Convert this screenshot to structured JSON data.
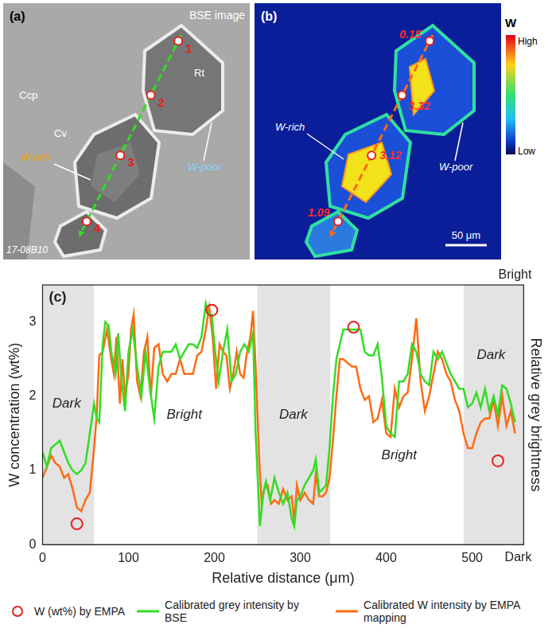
{
  "panel_a": {
    "letter": "(a)",
    "caption": "BSE image",
    "sample": "17-08B10",
    "minerals": [
      "Rt",
      "Ccp",
      "Cv"
    ],
    "zones": [
      "W-rich",
      "W-poor"
    ],
    "spots": [
      1,
      2,
      3,
      4
    ]
  },
  "panel_b": {
    "letter": "(b)",
    "element": "W",
    "colorbar_high": "High",
    "colorbar_low": "Low",
    "zones": [
      "W-rich",
      "W-poor"
    ],
    "spot_values": [
      0.15,
      3.32,
      3.12,
      1.09
    ],
    "scale_bar": "50 μm"
  },
  "chart_data": {
    "type": "line",
    "letter": "(c)",
    "xlabel": "Relative distance (μm)",
    "ylabel": "W concentration (wt%)",
    "y2label": "Relative grey brightness",
    "y2_top_label": "Bright",
    "y2_bottom_label": "Dark",
    "xlim": [
      0,
      560
    ],
    "xticks": [
      0,
      100,
      200,
      300,
      400,
      500
    ],
    "ylim": [
      0,
      3.5
    ],
    "yticks": [
      0,
      1,
      2,
      3
    ],
    "grid": false,
    "legend": "bottom",
    "bands": [
      {
        "from": 0,
        "to": 60
      },
      {
        "from": 250,
        "to": 335
      },
      {
        "from": 490,
        "to": 560
      }
    ],
    "annotations": [
      {
        "text": "Dark",
        "x": 28,
        "y": 1.9
      },
      {
        "text": "Bright",
        "x": 165,
        "y": 1.75
      },
      {
        "text": "Dark",
        "x": 292,
        "y": 1.75
      },
      {
        "text": "Bright",
        "x": 415,
        "y": 1.2
      },
      {
        "text": "Dark",
        "x": 522,
        "y": 2.55
      }
    ],
    "series": [
      {
        "name": "W (wt%) by EMPA",
        "type": "scatter",
        "marker": "circle",
        "color": "#e8201b",
        "x": [
          40,
          197,
          362,
          530
        ],
        "values": [
          0.28,
          3.16,
          2.93,
          1.13
        ]
      },
      {
        "name": "Calibrated grey intensity by BSE",
        "type": "line",
        "line_style": "solid",
        "color": "#33dd22",
        "x": [
          0,
          5,
          10,
          15,
          20,
          25,
          30,
          35,
          40,
          45,
          50,
          55,
          60,
          63,
          66,
          70,
          73,
          77,
          80,
          85,
          88,
          92,
          96,
          100,
          105,
          110,
          115,
          120,
          125,
          130,
          135,
          140,
          145,
          150,
          155,
          160,
          165,
          170,
          175,
          180,
          185,
          190,
          193,
          197,
          200,
          205,
          210,
          215,
          220,
          225,
          230,
          235,
          240,
          245,
          248,
          250,
          253,
          257,
          260,
          265,
          270,
          275,
          280,
          285,
          290,
          293,
          296,
          300,
          305,
          310,
          315,
          318,
          322,
          326,
          330,
          334,
          338,
          342,
          346,
          350,
          355,
          360,
          365,
          370,
          375,
          380,
          385,
          390,
          395,
          400,
          405,
          410,
          415,
          420,
          425,
          430,
          435,
          440,
          445,
          450,
          455,
          460,
          465,
          470,
          475,
          480,
          485,
          490,
          495,
          500,
          505,
          510,
          515,
          520,
          525,
          530,
          535,
          540,
          545,
          550
        ],
        "values": [
          1.25,
          1.05,
          1.3,
          1.35,
          1.4,
          1.25,
          1.1,
          1.0,
          0.95,
          1.0,
          1.1,
          1.5,
          1.9,
          1.7,
          1.65,
          2.7,
          3.0,
          2.95,
          2.6,
          2.3,
          2.85,
          2.2,
          1.8,
          2.6,
          2.9,
          2.4,
          2.0,
          2.6,
          2.1,
          1.7,
          2.4,
          2.6,
          2.6,
          2.6,
          2.7,
          2.5,
          2.6,
          2.7,
          2.7,
          2.65,
          2.8,
          3.25,
          3.1,
          3.1,
          2.7,
          2.2,
          2.6,
          2.9,
          2.2,
          2.3,
          2.6,
          2.7,
          2.6,
          2.85,
          1.5,
          1.0,
          0.25,
          0.7,
          0.85,
          0.6,
          0.9,
          0.7,
          0.55,
          0.7,
          0.35,
          0.25,
          0.6,
          0.65,
          0.8,
          0.9,
          1.0,
          1.15,
          0.7,
          0.75,
          0.8,
          1.3,
          2.0,
          2.5,
          2.7,
          2.9,
          2.9,
          2.9,
          2.9,
          2.9,
          2.6,
          2.55,
          2.55,
          2.7,
          2.25,
          1.6,
          1.5,
          1.45,
          2.2,
          2.2,
          2.3,
          2.7,
          2.6,
          2.3,
          2.2,
          2.15,
          2.6,
          2.5,
          2.6,
          2.45,
          2.3,
          2.2,
          2.1,
          2.1,
          1.85,
          1.9,
          2.05,
          1.85,
          2.1,
          1.8,
          2.0,
          1.75,
          2.15,
          2.1,
          1.9,
          1.65
        ]
      },
      {
        "name": "Calibrated W intensity by EMPA mapping",
        "type": "line",
        "line_style": "solid",
        "color": "#ff6a13",
        "x": [
          0,
          5,
          10,
          15,
          20,
          25,
          30,
          35,
          40,
          45,
          50,
          55,
          60,
          63,
          66,
          70,
          75,
          80,
          83,
          86,
          90,
          93,
          96,
          100,
          103,
          106,
          110,
          114,
          118,
          122,
          126,
          130,
          135,
          140,
          145,
          150,
          155,
          160,
          165,
          170,
          175,
          180,
          185,
          190,
          194,
          198,
          202,
          206,
          210,
          214,
          218,
          222,
          226,
          230,
          234,
          238,
          242,
          245,
          248,
          252,
          255,
          258,
          262,
          266,
          270,
          275,
          280,
          285,
          290,
          293,
          296,
          300,
          305,
          310,
          315,
          318,
          322,
          326,
          330,
          334,
          338,
          342,
          346,
          350,
          355,
          360,
          365,
          370,
          375,
          380,
          385,
          390,
          395,
          400,
          405,
          410,
          415,
          420,
          425,
          430,
          435,
          440,
          445,
          450,
          455,
          460,
          465,
          470,
          475,
          480,
          485,
          490,
          495,
          500,
          505,
          510,
          515,
          520,
          525,
          530,
          535,
          540,
          545,
          550
        ],
        "values": [
          0.9,
          1.05,
          1.2,
          1.1,
          1.05,
          0.9,
          0.95,
          0.75,
          0.5,
          0.45,
          0.6,
          0.7,
          1.3,
          1.75,
          2.55,
          2.6,
          2.9,
          2.5,
          2.3,
          2.8,
          1.9,
          2.5,
          2.0,
          2.3,
          2.9,
          3.1,
          2.2,
          2.0,
          2.6,
          2.8,
          2.0,
          2.65,
          2.7,
          2.3,
          2.2,
          2.3,
          2.3,
          2.5,
          2.3,
          2.3,
          2.3,
          2.55,
          2.6,
          2.9,
          3.2,
          2.8,
          2.1,
          2.7,
          2.6,
          2.55,
          2.1,
          2.3,
          2.6,
          2.3,
          2.25,
          2.6,
          2.8,
          3.15,
          2.4,
          1.2,
          0.55,
          0.75,
          0.8,
          0.55,
          0.6,
          0.55,
          0.75,
          0.6,
          0.65,
          0.3,
          0.8,
          0.6,
          0.7,
          0.6,
          0.55,
          0.95,
          0.65,
          0.65,
          0.7,
          0.9,
          1.4,
          2.0,
          2.5,
          2.5,
          2.45,
          2.4,
          2.4,
          2.1,
          1.95,
          2.0,
          1.65,
          1.7,
          1.95,
          1.5,
          1.45,
          2.1,
          1.85,
          2.0,
          2.05,
          2.5,
          3.05,
          2.2,
          1.8,
          2.0,
          2.3,
          2.6,
          2.5,
          2.3,
          2.2,
          1.95,
          1.8,
          1.5,
          1.3,
          1.3,
          1.5,
          1.65,
          1.7,
          1.7,
          1.95,
          1.6,
          2.0,
          1.6,
          1.8,
          1.5
        ]
      }
    ]
  }
}
